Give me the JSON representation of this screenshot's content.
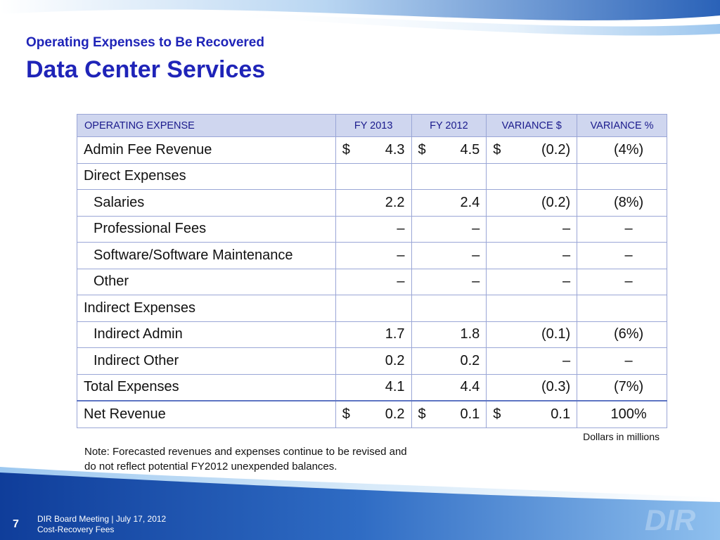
{
  "header": {
    "subtitle": "Operating Expenses to Be Recovered",
    "title": "Data Center Services"
  },
  "table": {
    "columns": [
      "OPERATING EXPENSE",
      "FY 2013",
      "FY 2012",
      "VARIANCE $",
      "VARIANCE %"
    ],
    "rows": [
      {
        "label": "Admin Fee Revenue",
        "indent": false,
        "fy2013_cur": "$",
        "fy2013": "4.3",
        "fy2012_cur": "$",
        "fy2012": "4.5",
        "var_cur": "$",
        "var": "(0.2)",
        "var_pct": "(4%)"
      },
      {
        "label": "Direct Expenses",
        "indent": false,
        "fy2013_cur": "",
        "fy2013": "",
        "fy2012_cur": "",
        "fy2012": "",
        "var_cur": "",
        "var": "",
        "var_pct": ""
      },
      {
        "label": "Salaries",
        "indent": true,
        "fy2013_cur": "",
        "fy2013": "2.2",
        "fy2012_cur": "",
        "fy2012": "2.4",
        "var_cur": "",
        "var": "(0.2)",
        "var_pct": "(8%)"
      },
      {
        "label": "Professional Fees",
        "indent": true,
        "fy2013_cur": "",
        "fy2013": "–",
        "fy2012_cur": "",
        "fy2012": "–",
        "var_cur": "",
        "var": "–",
        "var_pct": "–"
      },
      {
        "label": "Software/Software Maintenance",
        "indent": true,
        "fy2013_cur": "",
        "fy2013": "–",
        "fy2012_cur": "",
        "fy2012": "–",
        "var_cur": "",
        "var": "–",
        "var_pct": "–"
      },
      {
        "label": "Other",
        "indent": true,
        "fy2013_cur": "",
        "fy2013": "–",
        "fy2012_cur": "",
        "fy2012": "–",
        "var_cur": "",
        "var": "–",
        "var_pct": "–"
      },
      {
        "label": "Indirect Expenses",
        "indent": false,
        "fy2013_cur": "",
        "fy2013": "",
        "fy2012_cur": "",
        "fy2012": "",
        "var_cur": "",
        "var": "",
        "var_pct": ""
      },
      {
        "label": "Indirect Admin",
        "indent": true,
        "fy2013_cur": "",
        "fy2013": "1.7",
        "fy2012_cur": "",
        "fy2012": "1.8",
        "var_cur": "",
        "var": "(0.1)",
        "var_pct": "(6%)"
      },
      {
        "label": "Indirect Other",
        "indent": true,
        "fy2013_cur": "",
        "fy2013": "0.2",
        "fy2012_cur": "",
        "fy2012": "0.2",
        "var_cur": "",
        "var": "–",
        "var_pct": "–"
      },
      {
        "label": "Total Expenses",
        "indent": false,
        "fy2013_cur": "",
        "fy2013": "4.1",
        "fy2012_cur": "",
        "fy2012": "4.4",
        "var_cur": "",
        "var": "(0.3)",
        "var_pct": "(7%)"
      },
      {
        "label": "Net Revenue",
        "indent": false,
        "fy2013_cur": "$",
        "fy2013": "0.2",
        "fy2012_cur": "$",
        "fy2012": "0.1",
        "var_cur": "$",
        "var": "0.1",
        "var_pct": "100%"
      }
    ]
  },
  "units_note": "Dollars in millions",
  "note_line1": "Note: Forecasted revenues and expenses continue to be revised and",
  "note_line2": "do not reflect potential FY2012 unexpended balances.",
  "footer": {
    "page_number": "7",
    "line1": "DIR Board Meeting | July 17, 2012",
    "line2": "Cost-Recovery Fees"
  },
  "logo": {
    "text": "DIR"
  },
  "colors": {
    "title": "#1f24b8",
    "header_fill": "#cfd6ef",
    "header_text": "#1a1a8c",
    "grid": "#9aa6d6",
    "wave_dark": "#1d4fa8",
    "wave_light": "#7fb4e6"
  }
}
